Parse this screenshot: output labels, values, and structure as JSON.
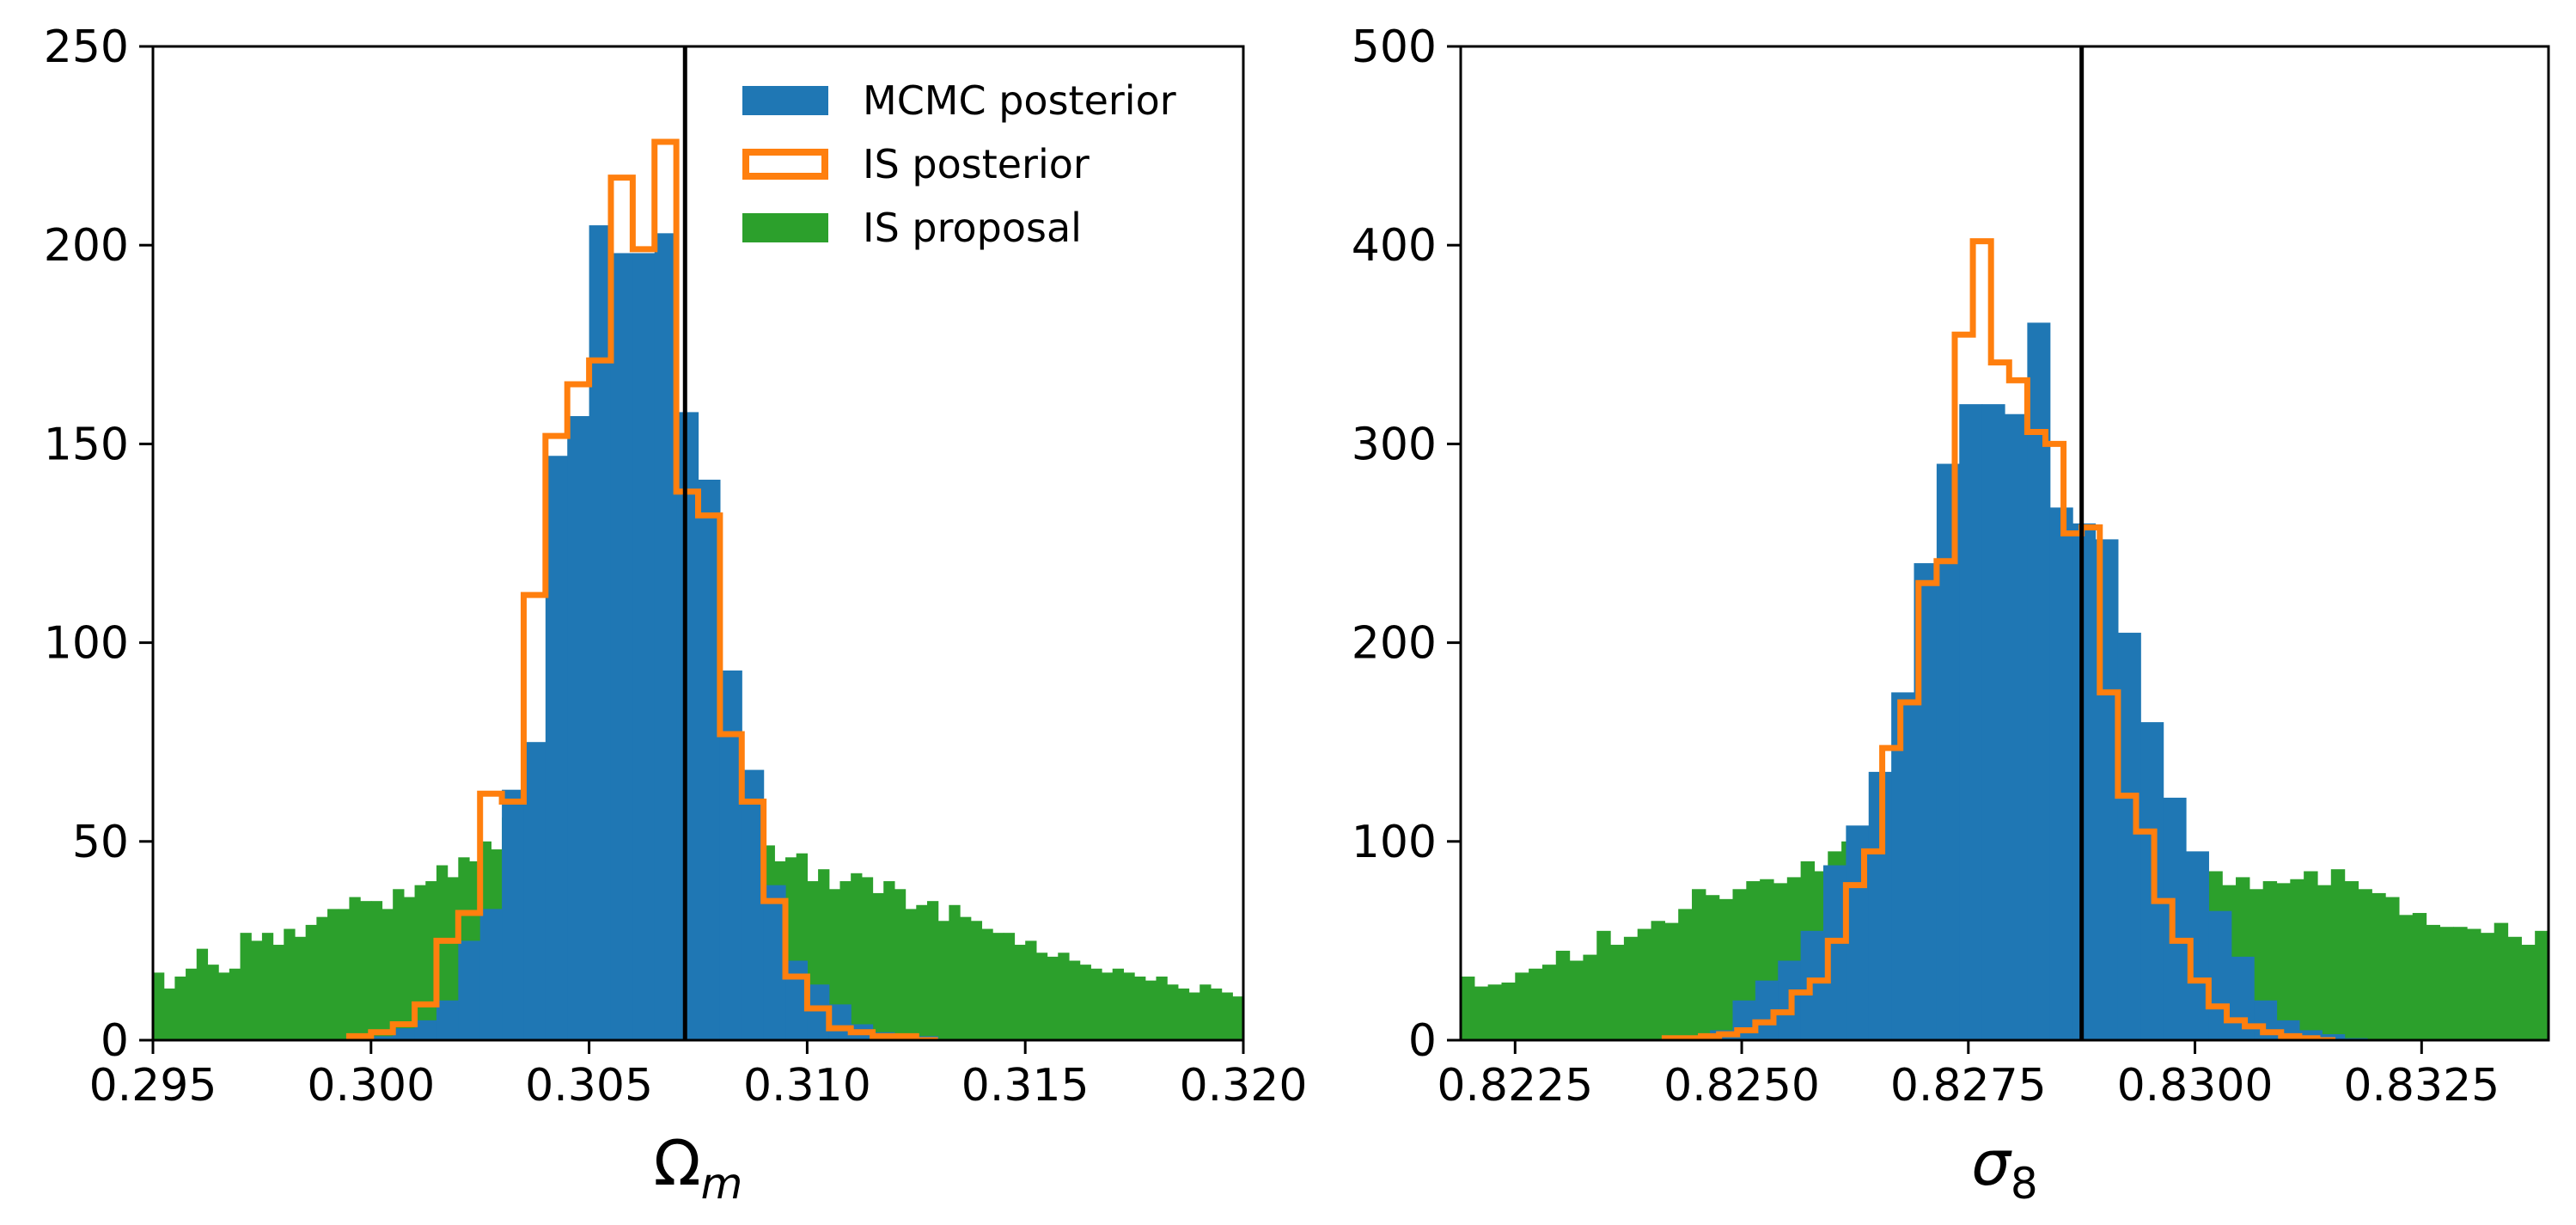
{
  "chart_data": [
    {
      "type": "bar",
      "panel": "left",
      "xlabel_main": "Ω",
      "xlabel_sub": "m",
      "ylabel": "",
      "title": "",
      "xlim": [
        0.295,
        0.32
      ],
      "ylim": [
        0,
        250
      ],
      "x_ticks": [
        "0.295",
        "0.300",
        "0.305",
        "0.310",
        "0.315",
        "0.320"
      ],
      "x_tick_values": [
        0.295,
        0.3,
        0.305,
        0.31,
        0.315,
        0.32
      ],
      "y_ticks": [
        "0",
        "50",
        "100",
        "150",
        "200",
        "250"
      ],
      "y_tick_values": [
        0,
        50,
        100,
        150,
        200,
        250
      ],
      "reference_line_x": 0.3072,
      "legend": {
        "position": "top-right",
        "entries": [
          {
            "label": "MCMC posterior",
            "style": "filled",
            "color": "#1f77b4"
          },
          {
            "label": "IS posterior",
            "style": "step",
            "color": "#ff7f0e"
          },
          {
            "label": "IS proposal",
            "style": "filled",
            "color": "#2ca02c"
          }
        ]
      },
      "series": [
        {
          "name": "IS proposal",
          "kind": "filled",
          "color": "#2ca02c",
          "bin_start": 0.295,
          "bin_width": 0.00025,
          "values": [
            17,
            13,
            16,
            18,
            23,
            19,
            17,
            18,
            27,
            25,
            27,
            24,
            28,
            26,
            29,
            31,
            33,
            33,
            36,
            35,
            35,
            33,
            38,
            36,
            39,
            40,
            44,
            41,
            46,
            45,
            50,
            48,
            56,
            49,
            55,
            50,
            45,
            42,
            38,
            35,
            32,
            30,
            28,
            25,
            22,
            20,
            18,
            20,
            55,
            54,
            57,
            58,
            55,
            53,
            50,
            48,
            49,
            45,
            46,
            47,
            40,
            43,
            38,
            40,
            42,
            41,
            37,
            40,
            38,
            33,
            34,
            35,
            30,
            34,
            31,
            30,
            28,
            27,
            27,
            24,
            25,
            22,
            21,
            22,
            20,
            19,
            18,
            17,
            18,
            17,
            16,
            15,
            16,
            14,
            13,
            12,
            14,
            13,
            12,
            11
          ]
        },
        {
          "name": "MCMC posterior",
          "kind": "filled",
          "color": "#1f77b4",
          "bin_start": 0.2995,
          "bin_width": 0.0005,
          "values": [
            1,
            1,
            3,
            5,
            10,
            25,
            33,
            63,
            75,
            147,
            157,
            205,
            198,
            198,
            203,
            158,
            141,
            93,
            68,
            39,
            20,
            14,
            9,
            4,
            2,
            1,
            1
          ]
        },
        {
          "name": "IS posterior",
          "kind": "step",
          "color": "#ff7f0e",
          "bin_start": 0.2995,
          "bin_width": 0.0005,
          "values": [
            1,
            2,
            4,
            9,
            25,
            32,
            62,
            60,
            112,
            152,
            165,
            171,
            217,
            199,
            226,
            138,
            132,
            77,
            60,
            35,
            16,
            8,
            3,
            2,
            1,
            1,
            0
          ]
        }
      ]
    },
    {
      "type": "bar",
      "panel": "right",
      "xlabel_main": "σ",
      "xlabel_sub": "8",
      "ylabel": "",
      "title": "",
      "xlim": [
        0.8219,
        0.8339
      ],
      "ylim": [
        0,
        500
      ],
      "x_ticks": [
        "0.8225",
        "0.8250",
        "0.8275",
        "0.8300",
        "0.8325"
      ],
      "x_tick_values": [
        0.8225,
        0.825,
        0.8275,
        0.83,
        0.8325
      ],
      "y_ticks": [
        "0",
        "100",
        "200",
        "300",
        "400",
        "500"
      ],
      "y_tick_values": [
        0,
        100,
        200,
        300,
        400,
        500
      ],
      "reference_line_x": 0.82875,
      "series": [
        {
          "name": "IS proposal",
          "kind": "filled",
          "color": "#2ca02c",
          "bin_start": 0.8219,
          "bin_width": 0.00015,
          "values": [
            32,
            27,
            28,
            29,
            34,
            36,
            38,
            45,
            40,
            43,
            55,
            48,
            52,
            56,
            60,
            59,
            66,
            76,
            73,
            71,
            76,
            80,
            81,
            79,
            82,
            90,
            85,
            95,
            100,
            105,
            97,
            94,
            90,
            85,
            80,
            72,
            65,
            60,
            55,
            50,
            45,
            42,
            40,
            38,
            35,
            32,
            30,
            45,
            50,
            55,
            95,
            100,
            102,
            92,
            80,
            85,
            78,
            82,
            76,
            80,
            79,
            81,
            85,
            78,
            86,
            80,
            76,
            74,
            72,
            63,
            64,
            58,
            57,
            57,
            56,
            54,
            59,
            52,
            48,
            55,
            40,
            37,
            32,
            30,
            30
          ]
        },
        {
          "name": "MCMC posterior",
          "kind": "filled",
          "color": "#1f77b4",
          "bin_start": 0.82465,
          "bin_width": 0.00025,
          "values": [
            5,
            20,
            30,
            40,
            55,
            88,
            108,
            135,
            175,
            240,
            290,
            320,
            320,
            315,
            361,
            268,
            260,
            252,
            205,
            160,
            122,
            95,
            65,
            42,
            20,
            10,
            5,
            3,
            1
          ]
        },
        {
          "name": "IS posterior",
          "kind": "step",
          "color": "#ff7f0e",
          "bin_start": 0.82415,
          "bin_width": 0.0002,
          "values": [
            1,
            1,
            2,
            3,
            5,
            9,
            14,
            24,
            30,
            50,
            78,
            95,
            147,
            170,
            230,
            241,
            355,
            402,
            341,
            332,
            306,
            300,
            255,
            258,
            175,
            123,
            105,
            70,
            50,
            30,
            17,
            10,
            7,
            4,
            2,
            1,
            0
          ]
        }
      ]
    }
  ]
}
